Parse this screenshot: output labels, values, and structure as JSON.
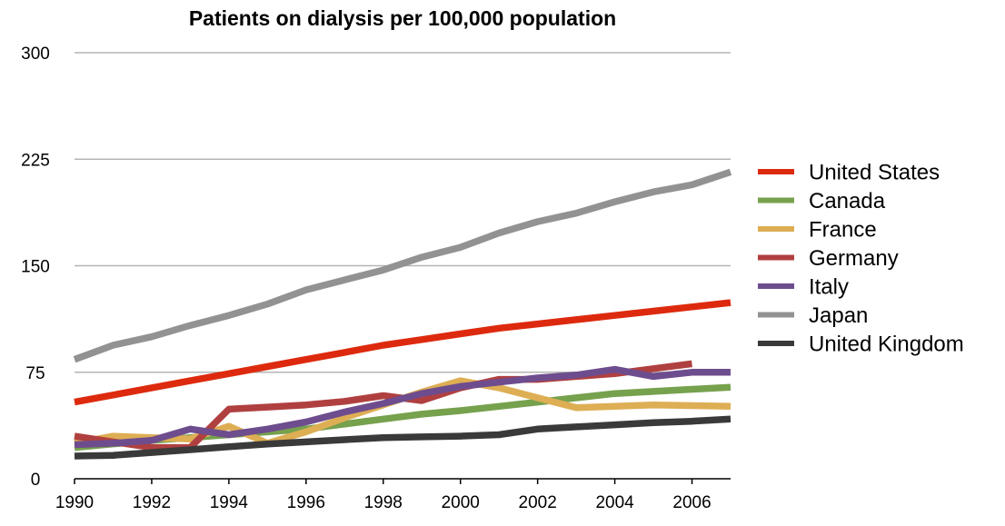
{
  "chart_data": {
    "type": "line",
    "title": "Patients on dialysis per 100,000 population",
    "xlabel": "",
    "ylabel": "",
    "xlim": [
      1990,
      2007
    ],
    "ylim": [
      0,
      300
    ],
    "grid": true,
    "legend_position": "right",
    "x_ticks": [
      1990,
      1992,
      1994,
      1996,
      1998,
      2000,
      2002,
      2004,
      2006
    ],
    "x_tick_labels": [
      "1990",
      "1992",
      "1994",
      "1996",
      "1998",
      "2000",
      "2002",
      "2004",
      "2006"
    ],
    "y_ticks": [
      0,
      75,
      150,
      225,
      300
    ],
    "y_tick_labels": [
      "0",
      "75",
      "150",
      "225",
      "300"
    ],
    "x": [
      1990,
      1991,
      1992,
      1993,
      1994,
      1995,
      1996,
      1997,
      1998,
      1999,
      2000,
      2001,
      2002,
      2003,
      2004,
      2005,
      2006,
      2007
    ],
    "series": [
      {
        "name": "United States",
        "color": "#dd2a0e",
        "values": [
          54,
          59,
          64,
          69,
          74,
          79,
          84,
          89,
          94,
          98,
          102,
          106,
          109,
          112,
          115,
          118,
          121,
          124
        ]
      },
      {
        "name": "Canada",
        "color": "#76a14d",
        "values": [
          22,
          24.5,
          27,
          29,
          31,
          33,
          35,
          38.5,
          42,
          45.5,
          48,
          51,
          54,
          57,
          60,
          61.5,
          63,
          64.5
        ]
      },
      {
        "name": "France",
        "color": "#deae54",
        "values": [
          25,
          30,
          29,
          28,
          37,
          25,
          33,
          43,
          52,
          61,
          69,
          64,
          57,
          50,
          51,
          52,
          51.5,
          51
        ]
      },
      {
        "name": "Germany",
        "color": "#b04040",
        "values": [
          30,
          26,
          22,
          22,
          49,
          50.5,
          52,
          54.5,
          58.5,
          55,
          64,
          70,
          70,
          72,
          74,
          77.5,
          81,
          null
        ]
      },
      {
        "name": "Italy",
        "color": "#6e4d8e",
        "values": [
          24,
          25,
          27,
          35,
          31,
          35,
          40,
          47,
          53,
          60,
          65,
          68,
          71,
          73,
          77,
          72,
          75,
          75
        ]
      },
      {
        "name": "Japan",
        "color": "#929292",
        "values": [
          84,
          94,
          100,
          108,
          115,
          123,
          133,
          140,
          147,
          156,
          163,
          173,
          181,
          187,
          195,
          202,
          207,
          216
        ]
      },
      {
        "name": "United Kingdom",
        "color": "#3a3a3a",
        "values": [
          16,
          16.5,
          18.5,
          20.5,
          22.5,
          24.5,
          26,
          27.5,
          29,
          29.5,
          30,
          31,
          35,
          36.5,
          38,
          39.5,
          40.5,
          42
        ]
      }
    ]
  }
}
